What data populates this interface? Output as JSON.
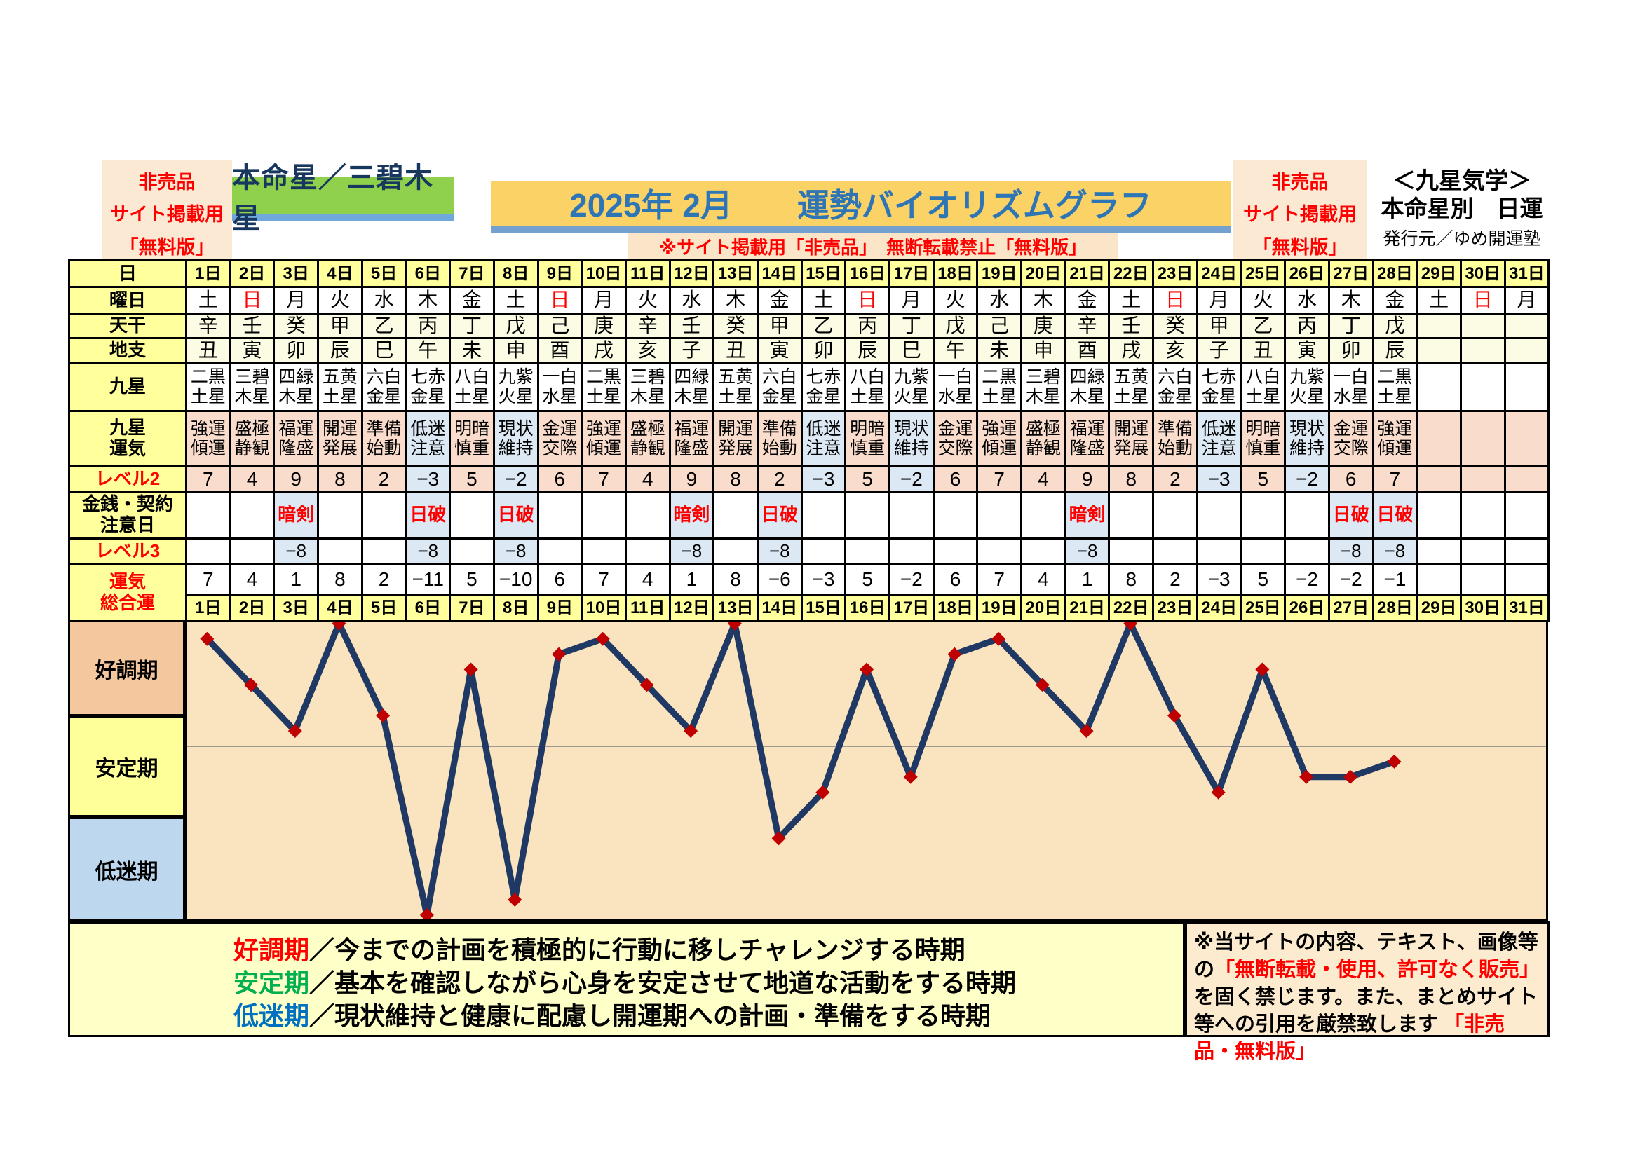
{
  "page": {
    "left_badge": {
      "lines": [
        "非売品",
        "サイト掲載用",
        "「無料版」"
      ]
    },
    "honmeisei_label": "本命星／三碧木星",
    "title": "2025年 2月　　運勢バイオリズムグラフ",
    "notice": "※サイト掲載用「非売品」　無断転載禁止「無料版」",
    "right_badge": {
      "lines": [
        "非売品",
        "サイト掲載用",
        "「無料版」"
      ]
    },
    "publisher": {
      "line1": "＜九星気学＞",
      "line2": "本命星別　日運",
      "line3": "発行元／ゆめ開運塾"
    }
  },
  "table": {
    "row_headers": {
      "day": "日",
      "weekday": "曜日",
      "stem": "天干",
      "branch": "地支",
      "star": "九星",
      "star_luck": "九星\n運気",
      "level2": "レベル2",
      "caution": "金銭・契約\n注意日",
      "level3": "レベル3",
      "total": "運気\n総合運"
    },
    "days": [
      "1日",
      "2日",
      "3日",
      "4日",
      "5日",
      "6日",
      "7日",
      "8日",
      "9日",
      "10日",
      "11日",
      "12日",
      "13日",
      "14日",
      "15日",
      "16日",
      "17日",
      "18日",
      "19日",
      "20日",
      "21日",
      "22日",
      "23日",
      "24日",
      "25日",
      "26日",
      "27日",
      "28日",
      "29日",
      "30日",
      "31日"
    ],
    "weekdays": [
      "土",
      "日",
      "月",
      "火",
      "水",
      "木",
      "金",
      "土",
      "日",
      "月",
      "火",
      "水",
      "木",
      "金",
      "土",
      "日",
      "月",
      "火",
      "水",
      "木",
      "金",
      "土",
      "日",
      "月",
      "火",
      "水",
      "木",
      "金",
      "土",
      "日",
      "月"
    ],
    "sunday_indices": [
      1,
      8,
      15,
      22,
      29
    ],
    "stems": [
      "辛",
      "壬",
      "癸",
      "甲",
      "乙",
      "丙",
      "丁",
      "戊",
      "己",
      "庚",
      "辛",
      "壬",
      "癸",
      "甲",
      "乙",
      "丙",
      "丁",
      "戊",
      "己",
      "庚",
      "辛",
      "壬",
      "癸",
      "甲",
      "乙",
      "丙",
      "丁",
      "戊",
      "",
      "",
      ""
    ],
    "branches": [
      "丑",
      "寅",
      "卯",
      "辰",
      "巳",
      "午",
      "未",
      "申",
      "酉",
      "戌",
      "亥",
      "子",
      "丑",
      "寅",
      "卯",
      "辰",
      "巳",
      "午",
      "未",
      "申",
      "酉",
      "戌",
      "亥",
      "子",
      "丑",
      "寅",
      "卯",
      "辰",
      "",
      "",
      ""
    ],
    "stars": [
      "二黒\n土星",
      "三碧\n木星",
      "四緑\n木星",
      "五黄\n土星",
      "六白\n金星",
      "七赤\n金星",
      "八白\n土星",
      "九紫\n火星",
      "一白\n水星",
      "二黒\n土星",
      "三碧\n木星",
      "四緑\n木星",
      "五黄\n土星",
      "六白\n金星",
      "七赤\n金星",
      "八白\n土星",
      "九紫\n火星",
      "一白\n水星",
      "二黒\n土星",
      "三碧\n木星",
      "四緑\n木星",
      "五黄\n土星",
      "六白\n金星",
      "七赤\n金星",
      "八白\n土星",
      "九紫\n火星",
      "一白\n水星",
      "二黒\n土星",
      "",
      "",
      ""
    ],
    "star_luck": [
      "強運\n傾運",
      "盛極\n静観",
      "福運\n隆盛",
      "開運\n発展",
      "準備\n始動",
      "低迷\n注意",
      "明暗\n慎重",
      "現状\n維持",
      "金運\n交際",
      "強運\n傾運",
      "盛極\n静観",
      "福運\n隆盛",
      "開運\n発展",
      "準備\n始動",
      "低迷\n注意",
      "明暗\n慎重",
      "現状\n維持",
      "金運\n交際",
      "強運\n傾運",
      "盛極\n静観",
      "福運\n隆盛",
      "開運\n発展",
      "準備\n始動",
      "低迷\n注意",
      "明暗\n慎重",
      "現状\n維持",
      "金運\n交際",
      "強運\n傾運",
      "",
      "",
      ""
    ],
    "level2": [
      7,
      4,
      9,
      8,
      2,
      -3,
      5,
      -2,
      6,
      7,
      4,
      9,
      8,
      2,
      -3,
      5,
      -2,
      6,
      7,
      4,
      9,
      8,
      2,
      -3,
      5,
      -2,
      6,
      7,
      "",
      "",
      ""
    ],
    "caution": [
      "",
      "",
      "暗剣",
      "",
      "",
      "日破",
      "",
      "日破",
      "",
      "",
      "",
      "暗剣",
      "",
      "日破",
      "",
      "",
      "",
      "",
      "",
      "",
      "暗剣",
      "",
      "",
      "",
      "",
      "",
      "日破",
      "日破",
      "",
      "",
      ""
    ],
    "level3": [
      "",
      "",
      -8,
      "",
      "",
      -8,
      "",
      -8,
      "",
      "",
      "",
      -8,
      "",
      -8,
      "",
      "",
      "",
      "",
      "",
      "",
      -8,
      "",
      "",
      "",
      "",
      "",
      -8,
      -8,
      "",
      "",
      ""
    ],
    "total": [
      7,
      4,
      1,
      8,
      2,
      -11,
      5,
      -10,
      6,
      7,
      4,
      1,
      8,
      -6,
      -3,
      5,
      -2,
      6,
      7,
      4,
      1,
      8,
      2,
      -3,
      5,
      -2,
      -2,
      -1,
      "",
      "",
      ""
    ]
  },
  "zones": [
    {
      "label": "好調期",
      "color": "#F5C79F"
    },
    {
      "label": "安定期",
      "color": "#FFFF99"
    },
    {
      "label": "低迷期",
      "color": "#BDD7EE"
    }
  ],
  "chart_data": {
    "type": "line",
    "title": "2025年 2月 運勢バイオリズムグラフ",
    "series_name": "運気総合運",
    "x": [
      1,
      2,
      3,
      4,
      5,
      6,
      7,
      8,
      9,
      10,
      11,
      12,
      13,
      14,
      15,
      16,
      17,
      18,
      19,
      20,
      21,
      22,
      23,
      24,
      25,
      26,
      27,
      28
    ],
    "values": [
      7,
      4,
      1,
      8,
      2,
      -11,
      5,
      -10,
      6,
      7,
      4,
      1,
      8,
      -6,
      -3,
      5,
      -2,
      6,
      7,
      4,
      1,
      8,
      2,
      -3,
      5,
      -2,
      -2,
      -1
    ],
    "x_axis_days": 31,
    "ylim": [
      -11.5,
      8.5
    ],
    "zero_line": true,
    "zone_labels": [
      "好調期",
      "安定期",
      "低迷期"
    ],
    "line_color": "#1F3864",
    "marker": "diamond",
    "marker_color": "#C00000",
    "background": "#F9E4BF"
  },
  "footer": {
    "legend": [
      {
        "term": "好調期",
        "color": "#FF0000",
        "desc": "／今までの計画を積極的に行動に移しチャレンジする時期"
      },
      {
        "term": "安定期",
        "color": "#00B050",
        "desc": "／基本を確認しながら心身を安定させて地道な活動をする時期"
      },
      {
        "term": "低迷期",
        "color": "#0070C0",
        "desc": "／現状維持と健康に配慮し開運期への計画・準備をする時期"
      }
    ],
    "warning_segments": [
      {
        "text": "※当サイトの内容、テキスト、画像等の",
        "red": false
      },
      {
        "text": "「無断転載・使用、許可なく販売」",
        "red": true
      },
      {
        "text": "を固く禁じます。また、まとめサイト等への引用を厳禁致します ",
        "red": false
      },
      {
        "text": "「非売品・無料版」",
        "red": true
      }
    ]
  },
  "colors": {
    "title_bg": "#FBD266",
    "title_text": "#2E75B6",
    "accent_strip": "#74A0D0",
    "honmeisei_bg": "#8FD04C",
    "badge_bg": "#FCE9D4",
    "badge_text": "#FF0000",
    "header_yellow": "#FFFF9C",
    "pink_cell": "#FADCCC",
    "blue_cell": "#DCE9F5",
    "caution_header": "#9FC5E8",
    "chart_bg": "#F9E4BF",
    "line": "#1F3864",
    "marker": "#C00000"
  }
}
